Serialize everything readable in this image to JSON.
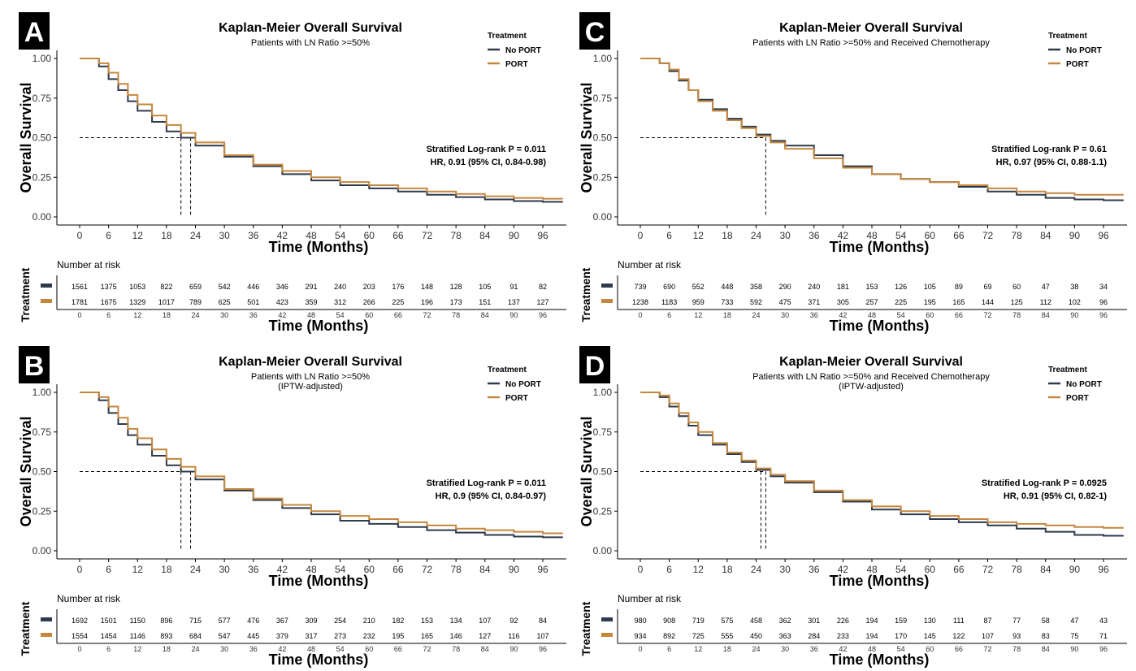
{
  "legend_title": "Treatment",
  "x_axis_label": "Time (Months)",
  "y_axis_label": "Overall Survival",
  "risk_title": "Number at risk",
  "risk_axis_label": "Treatment",
  "colors": {
    "no_port": "#2f3a4c",
    "port": "#c5873e"
  },
  "chart_data": [
    {
      "type": "line",
      "panel_label": "A",
      "title": "Kaplan-Meier Overall Survival",
      "subtitle": "Patients with LN Ratio >=50%",
      "xlabel": "Time (Months)",
      "ylabel": "Overall Survival",
      "xlim": [
        0,
        100
      ],
      "ylim": [
        0,
        1
      ],
      "x_ticks": [
        0,
        6,
        12,
        18,
        24,
        30,
        36,
        42,
        48,
        54,
        60,
        66,
        72,
        78,
        84,
        90,
        96
      ],
      "y_ticks": [
        "0.00",
        "0.25",
        "0.50",
        "0.75",
        "1.00"
      ],
      "legend_title": "Treatment",
      "legend_position": "top-right",
      "annotation": [
        "Stratified Log-rank P = 0.011",
        "HR, 0.91 (95% CI, 0.84-0.98)"
      ],
      "median_survival": [
        21,
        23
      ],
      "series": [
        {
          "name": "No PORT",
          "x": [
            0,
            2,
            4,
            6,
            8,
            10,
            12,
            15,
            18,
            21,
            24,
            30,
            36,
            42,
            48,
            54,
            60,
            66,
            72,
            78,
            84,
            90,
            96,
            100
          ],
          "y": [
            1.0,
            1.0,
            0.95,
            0.87,
            0.8,
            0.73,
            0.67,
            0.6,
            0.54,
            0.5,
            0.45,
            0.38,
            0.32,
            0.27,
            0.23,
            0.2,
            0.18,
            0.16,
            0.14,
            0.125,
            0.11,
            0.1,
            0.095,
            0.09
          ]
        },
        {
          "name": "PORT",
          "x": [
            0,
            2,
            4,
            6,
            8,
            10,
            12,
            15,
            18,
            21,
            24,
            30,
            36,
            42,
            48,
            54,
            60,
            66,
            72,
            78,
            84,
            90,
            96,
            100
          ],
          "y": [
            1.0,
            1.0,
            0.97,
            0.91,
            0.84,
            0.77,
            0.71,
            0.64,
            0.58,
            0.53,
            0.47,
            0.39,
            0.33,
            0.29,
            0.25,
            0.22,
            0.2,
            0.18,
            0.16,
            0.145,
            0.13,
            0.12,
            0.115,
            0.11
          ]
        }
      ],
      "risk_table": {
        "x": [
          0,
          6,
          12,
          18,
          24,
          30,
          36,
          42,
          48,
          54,
          60,
          66,
          72,
          78,
          84,
          90,
          96
        ],
        "rows": [
          {
            "name": "No PORT",
            "values": [
              "1561",
              "1375",
              "1053",
              "822",
              "659",
              "542",
              "446",
              "346",
              "291",
              "240",
              "203",
              "176",
              "148",
              "128",
              "105",
              "91",
              "82"
            ]
          },
          {
            "name": "PORT",
            "values": [
              "1781",
              "1675",
              "1329",
              "1017",
              "789",
              "625",
              "501",
              "423",
              "359",
              "312",
              "266",
              "225",
              "196",
              "173",
              "151",
              "137",
              "127"
            ]
          }
        ]
      }
    },
    {
      "type": "line",
      "panel_label": "C",
      "title": "Kaplan-Meier Overall Survival",
      "subtitle": "Patients with LN Ratio >=50% and Received Chemotherapy",
      "xlabel": "Time (Months)",
      "ylabel": "Overall Survival",
      "xlim": [
        0,
        100
      ],
      "ylim": [
        0,
        1
      ],
      "x_ticks": [
        0,
        6,
        12,
        18,
        24,
        30,
        36,
        42,
        48,
        54,
        60,
        66,
        72,
        78,
        84,
        90,
        96
      ],
      "y_ticks": [
        "0.00",
        "0.25",
        "0.50",
        "0.75",
        "1.00"
      ],
      "legend_title": "Treatment",
      "legend_position": "top-right",
      "annotation": [
        "Stratified Log-rank P = 0.61",
        "HR, 0.97 (95% CI, 0.88-1.1)"
      ],
      "median_survival": [
        26
      ],
      "series": [
        {
          "name": "No PORT",
          "x": [
            0,
            2,
            4,
            6,
            8,
            10,
            12,
            15,
            18,
            21,
            24,
            27,
            30,
            36,
            42,
            48,
            54,
            60,
            66,
            72,
            78,
            84,
            90,
            96,
            100
          ],
          "y": [
            1.0,
            1.0,
            0.97,
            0.92,
            0.86,
            0.8,
            0.74,
            0.68,
            0.62,
            0.57,
            0.52,
            0.48,
            0.45,
            0.39,
            0.32,
            0.27,
            0.24,
            0.22,
            0.19,
            0.16,
            0.14,
            0.12,
            0.11,
            0.105,
            0.1
          ]
        },
        {
          "name": "PORT",
          "x": [
            0,
            2,
            4,
            6,
            8,
            10,
            12,
            15,
            18,
            21,
            24,
            27,
            30,
            36,
            42,
            48,
            54,
            60,
            66,
            72,
            78,
            84,
            90,
            96,
            100
          ],
          "y": [
            1.0,
            1.0,
            0.97,
            0.93,
            0.87,
            0.8,
            0.73,
            0.67,
            0.61,
            0.56,
            0.51,
            0.47,
            0.43,
            0.37,
            0.31,
            0.27,
            0.24,
            0.22,
            0.2,
            0.18,
            0.16,
            0.15,
            0.14,
            0.14,
            0.135
          ]
        }
      ],
      "risk_table": {
        "x": [
          0,
          6,
          12,
          18,
          24,
          30,
          36,
          42,
          48,
          54,
          60,
          66,
          72,
          78,
          84,
          90,
          96
        ],
        "rows": [
          {
            "name": "No PORT",
            "values": [
              "739",
              "690",
              "552",
              "448",
              "358",
              "290",
              "240",
              "181",
              "153",
              "126",
              "105",
              "89",
              "69",
              "60",
              "47",
              "38",
              "34"
            ]
          },
          {
            "name": "PORT",
            "values": [
              "1238",
              "1183",
              "959",
              "733",
              "592",
              "475",
              "371",
              "305",
              "257",
              "225",
              "195",
              "165",
              "144",
              "125",
              "112",
              "102",
              "96"
            ]
          }
        ]
      }
    },
    {
      "type": "line",
      "panel_label": "B",
      "title": "Kaplan-Meier Overall Survival",
      "subtitle": "Patients with LN Ratio >=50%",
      "subtitle2": "(IPTW-adjusted)",
      "xlabel": "Time (Months)",
      "ylabel": "Overall Survival",
      "xlim": [
        0,
        100
      ],
      "ylim": [
        0,
        1
      ],
      "x_ticks": [
        0,
        6,
        12,
        18,
        24,
        30,
        36,
        42,
        48,
        54,
        60,
        66,
        72,
        78,
        84,
        90,
        96
      ],
      "y_ticks": [
        "0.00",
        "0.25",
        "0.50",
        "0.75",
        "1.00"
      ],
      "legend_title": "Treatment",
      "legend_position": "top-right",
      "annotation": [
        "Stratified Log-rank P = 0.011",
        "HR, 0.9 (95% CI, 0.84-0.97)"
      ],
      "median_survival": [
        21,
        23
      ],
      "series": [
        {
          "name": "No PORT",
          "x": [
            0,
            2,
            4,
            6,
            8,
            10,
            12,
            15,
            18,
            21,
            24,
            30,
            36,
            42,
            48,
            54,
            60,
            66,
            72,
            78,
            84,
            90,
            96,
            100
          ],
          "y": [
            1.0,
            1.0,
            0.95,
            0.87,
            0.8,
            0.73,
            0.67,
            0.6,
            0.54,
            0.5,
            0.45,
            0.38,
            0.32,
            0.27,
            0.23,
            0.19,
            0.17,
            0.15,
            0.13,
            0.115,
            0.1,
            0.09,
            0.085,
            0.08
          ]
        },
        {
          "name": "PORT",
          "x": [
            0,
            2,
            4,
            6,
            8,
            10,
            12,
            15,
            18,
            21,
            24,
            30,
            36,
            42,
            48,
            54,
            60,
            66,
            72,
            78,
            84,
            90,
            96,
            100
          ],
          "y": [
            1.0,
            1.0,
            0.97,
            0.91,
            0.84,
            0.77,
            0.71,
            0.64,
            0.58,
            0.53,
            0.47,
            0.39,
            0.33,
            0.29,
            0.25,
            0.22,
            0.2,
            0.18,
            0.16,
            0.14,
            0.13,
            0.12,
            0.11,
            0.105
          ]
        }
      ],
      "risk_table": {
        "x": [
          0,
          6,
          12,
          18,
          24,
          30,
          36,
          42,
          48,
          54,
          60,
          66,
          72,
          78,
          84,
          90,
          96
        ],
        "rows": [
          {
            "name": "No PORT",
            "values": [
              "1692",
              "1501",
              "1150",
              "896",
              "715",
              "577",
              "476",
              "367",
              "309",
              "254",
              "210",
              "182",
              "153",
              "134",
              "107",
              "92",
              "84"
            ]
          },
          {
            "name": "PORT",
            "values": [
              "1554",
              "1454",
              "1146",
              "893",
              "684",
              "547",
              "445",
              "379",
              "317",
              "273",
              "232",
              "195",
              "165",
              "146",
              "127",
              "116",
              "107"
            ]
          }
        ]
      }
    },
    {
      "type": "line",
      "panel_label": "D",
      "title": "Kaplan-Meier Overall Survival",
      "subtitle": "Patients with LN Ratio >=50% and Received Chemotherapy",
      "subtitle2": "(IPTW-adjusted)",
      "xlabel": "Time (Months)",
      "ylabel": "Overall Survival",
      "xlim": [
        0,
        100
      ],
      "ylim": [
        0,
        1
      ],
      "x_ticks": [
        0,
        6,
        12,
        18,
        24,
        30,
        36,
        42,
        48,
        54,
        60,
        66,
        72,
        78,
        84,
        90,
        96
      ],
      "y_ticks": [
        "0.00",
        "0.25",
        "0.50",
        "0.75",
        "1.00"
      ],
      "legend_title": "Treatment",
      "legend_position": "top-right",
      "annotation": [
        "Stratified Log-rank P = 0.0925",
        "HR, 0.91 (95% CI, 0.82-1)"
      ],
      "median_survival": [
        25,
        26
      ],
      "series": [
        {
          "name": "No PORT",
          "x": [
            0,
            2,
            4,
            6,
            8,
            10,
            12,
            15,
            18,
            21,
            24,
            27,
            30,
            36,
            42,
            48,
            54,
            60,
            66,
            72,
            78,
            84,
            90,
            96,
            100
          ],
          "y": [
            1.0,
            1.0,
            0.97,
            0.91,
            0.85,
            0.79,
            0.73,
            0.67,
            0.61,
            0.56,
            0.51,
            0.47,
            0.43,
            0.37,
            0.31,
            0.26,
            0.23,
            0.2,
            0.18,
            0.16,
            0.14,
            0.12,
            0.1,
            0.095,
            0.09
          ]
        },
        {
          "name": "PORT",
          "x": [
            0,
            2,
            4,
            6,
            8,
            10,
            12,
            15,
            18,
            21,
            24,
            27,
            30,
            36,
            42,
            48,
            54,
            60,
            66,
            72,
            78,
            84,
            90,
            96,
            100
          ],
          "y": [
            1.0,
            1.0,
            0.98,
            0.93,
            0.87,
            0.81,
            0.75,
            0.68,
            0.62,
            0.57,
            0.52,
            0.48,
            0.44,
            0.38,
            0.32,
            0.28,
            0.25,
            0.22,
            0.2,
            0.18,
            0.17,
            0.16,
            0.15,
            0.145,
            0.14
          ]
        }
      ],
      "risk_table": {
        "x": [
          0,
          6,
          12,
          18,
          24,
          30,
          36,
          42,
          48,
          54,
          60,
          66,
          72,
          78,
          84,
          90,
          96
        ],
        "rows": [
          {
            "name": "No PORT",
            "values": [
              "980",
              "908",
              "719",
              "575",
              "458",
              "362",
              "301",
              "226",
              "194",
              "159",
              "130",
              "111",
              "87",
              "77",
              "58",
              "47",
              "43"
            ]
          },
          {
            "name": "PORT",
            "values": [
              "934",
              "892",
              "725",
              "555",
              "450",
              "363",
              "284",
              "233",
              "194",
              "170",
              "145",
              "122",
              "107",
              "93",
              "83",
              "75",
              "71"
            ]
          }
        ]
      }
    }
  ]
}
